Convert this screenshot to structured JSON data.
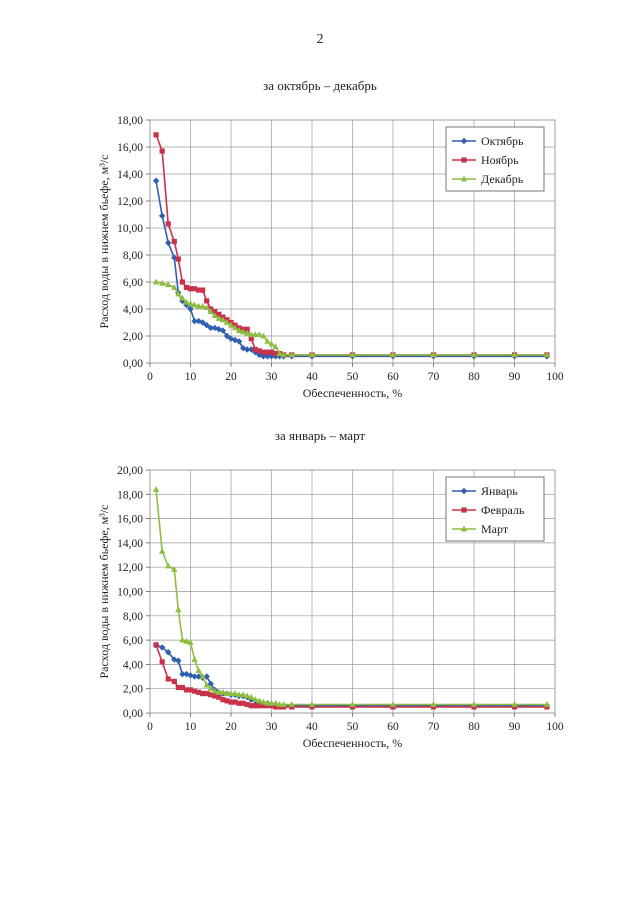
{
  "page": {
    "number": "2"
  },
  "chart_data": [
    {
      "type": "line",
      "title": "за октябрь – декабрь",
      "xlabel": "Обеспеченность, %",
      "ylabel": "Расход воды в нижнем бьефе, м³/с",
      "xlim": [
        0,
        100
      ],
      "ylim": [
        0,
        18
      ],
      "xticks": [
        "0",
        "10",
        "20",
        "30",
        "40",
        "50",
        "60",
        "70",
        "80",
        "90",
        "100"
      ],
      "yticks": [
        "0,00",
        "2,00",
        "4,00",
        "6,00",
        "8,00",
        "10,00",
        "12,00",
        "14,00",
        "16,00",
        "18,00"
      ],
      "grid": true,
      "legend_position": "top-right",
      "series": [
        {
          "name": "Октябрь",
          "color": "#2e5fb0",
          "marker": "diamond",
          "points": [
            [
              1.5,
              13.5
            ],
            [
              3,
              10.9
            ],
            [
              4.5,
              8.9
            ],
            [
              6,
              7.8
            ],
            [
              7,
              5.2
            ],
            [
              8,
              4.6
            ],
            [
              9,
              4.3
            ],
            [
              10,
              4.0
            ],
            [
              11,
              3.1
            ],
            [
              12,
              3.1
            ],
            [
              13,
              3.0
            ],
            [
              14,
              2.8
            ],
            [
              15,
              2.6
            ],
            [
              16,
              2.6
            ],
            [
              17,
              2.5
            ],
            [
              18,
              2.4
            ],
            [
              19,
              2.0
            ],
            [
              20,
              1.8
            ],
            [
              21,
              1.7
            ],
            [
              22,
              1.6
            ],
            [
              23,
              1.1
            ],
            [
              24,
              1.0
            ],
            [
              25,
              1.0
            ],
            [
              26,
              0.8
            ],
            [
              27,
              0.6
            ],
            [
              28,
              0.5
            ],
            [
              29,
              0.5
            ],
            [
              30,
              0.5
            ],
            [
              31,
              0.5
            ],
            [
              32,
              0.5
            ],
            [
              33,
              0.5
            ],
            [
              35,
              0.5
            ],
            [
              40,
              0.5
            ],
            [
              50,
              0.5
            ],
            [
              60,
              0.5
            ],
            [
              70,
              0.5
            ],
            [
              80,
              0.5
            ],
            [
              90,
              0.5
            ],
            [
              98,
              0.5
            ]
          ]
        },
        {
          "name": "Ноябрь",
          "color": "#c8324b",
          "marker": "square",
          "points": [
            [
              1.5,
              16.9
            ],
            [
              3,
              15.7
            ],
            [
              4.5,
              10.3
            ],
            [
              6,
              9.0
            ],
            [
              7,
              7.7
            ],
            [
              8,
              6.0
            ],
            [
              9,
              5.6
            ],
            [
              10,
              5.5
            ],
            [
              11,
              5.5
            ],
            [
              12,
              5.4
            ],
            [
              13,
              5.4
            ],
            [
              14,
              4.6
            ],
            [
              15,
              4.0
            ],
            [
              16,
              3.8
            ],
            [
              17,
              3.6
            ],
            [
              18,
              3.4
            ],
            [
              19,
              3.2
            ],
            [
              20,
              3.0
            ],
            [
              21,
              2.8
            ],
            [
              22,
              2.6
            ],
            [
              23,
              2.5
            ],
            [
              24,
              2.5
            ],
            [
              25,
              1.8
            ],
            [
              26,
              1.0
            ],
            [
              27,
              0.9
            ],
            [
              28,
              0.8
            ],
            [
              29,
              0.8
            ],
            [
              30,
              0.8
            ],
            [
              31,
              0.7
            ],
            [
              32,
              0.7
            ],
            [
              33,
              0.6
            ],
            [
              35,
              0.6
            ],
            [
              40,
              0.6
            ],
            [
              50,
              0.6
            ],
            [
              60,
              0.6
            ],
            [
              70,
              0.6
            ],
            [
              80,
              0.6
            ],
            [
              90,
              0.6
            ],
            [
              98,
              0.6
            ]
          ]
        },
        {
          "name": "Декабрь",
          "color": "#8ebd42",
          "marker": "triangle",
          "points": [
            [
              1.5,
              6.0
            ],
            [
              3,
              5.9
            ],
            [
              4.5,
              5.8
            ],
            [
              6,
              5.6
            ],
            [
              7,
              5.1
            ],
            [
              8,
              4.8
            ],
            [
              9,
              4.5
            ],
            [
              10,
              4.4
            ],
            [
              11,
              4.3
            ],
            [
              12,
              4.2
            ],
            [
              13,
              4.2
            ],
            [
              14,
              4.1
            ],
            [
              15,
              3.8
            ],
            [
              16,
              3.5
            ],
            [
              17,
              3.3
            ],
            [
              18,
              3.2
            ],
            [
              19,
              3.0
            ],
            [
              20,
              2.8
            ],
            [
              21,
              2.6
            ],
            [
              22,
              2.4
            ],
            [
              23,
              2.3
            ],
            [
              24,
              2.2
            ],
            [
              25,
              2.1
            ],
            [
              26,
              2.1
            ],
            [
              27,
              2.1
            ],
            [
              28,
              2.0
            ],
            [
              29,
              1.6
            ],
            [
              30,
              1.4
            ],
            [
              31,
              1.2
            ],
            [
              32,
              0.7
            ],
            [
              33,
              0.6
            ],
            [
              35,
              0.6
            ],
            [
              40,
              0.6
            ],
            [
              50,
              0.6
            ],
            [
              60,
              0.6
            ],
            [
              70,
              0.6
            ],
            [
              80,
              0.6
            ],
            [
              90,
              0.6
            ],
            [
              98,
              0.6
            ]
          ]
        }
      ]
    },
    {
      "type": "line",
      "title": "за январь – март",
      "xlabel": "Обеспеченность, %",
      "ylabel": "Расход воды в нижнем бьефе, м³/с",
      "xlim": [
        0,
        100
      ],
      "ylim": [
        0,
        20
      ],
      "xticks": [
        "0",
        "10",
        "20",
        "30",
        "40",
        "50",
        "60",
        "70",
        "80",
        "90",
        "100"
      ],
      "yticks": [
        "0,00",
        "2,00",
        "4,00",
        "6,00",
        "8,00",
        "10,00",
        "12,00",
        "14,00",
        "16,00",
        "18,00",
        "20,00"
      ],
      "grid": true,
      "legend_position": "top-right",
      "series": [
        {
          "name": "Январь",
          "color": "#2e5fb0",
          "marker": "diamond",
          "points": [
            [
              1.5,
              5.6
            ],
            [
              3,
              5.4
            ],
            [
              4.5,
              5.0
            ],
            [
              6,
              4.4
            ],
            [
              7,
              4.3
            ],
            [
              8,
              3.2
            ],
            [
              9,
              3.2
            ],
            [
              10,
              3.1
            ],
            [
              11,
              3.0
            ],
            [
              12,
              3.0
            ],
            [
              13,
              2.9
            ],
            [
              14,
              3.0
            ],
            [
              15,
              2.4
            ],
            [
              16,
              1.9
            ],
            [
              17,
              1.7
            ],
            [
              18,
              1.6
            ],
            [
              19,
              1.6
            ],
            [
              20,
              1.5
            ],
            [
              21,
              1.5
            ],
            [
              22,
              1.4
            ],
            [
              23,
              1.4
            ],
            [
              24,
              1.3
            ],
            [
              25,
              1.1
            ],
            [
              26,
              1.0
            ],
            [
              27,
              0.9
            ],
            [
              28,
              0.8
            ],
            [
              29,
              0.8
            ],
            [
              30,
              0.7
            ],
            [
              31,
              0.7
            ],
            [
              32,
              0.6
            ],
            [
              33,
              0.6
            ],
            [
              35,
              0.6
            ],
            [
              40,
              0.6
            ],
            [
              50,
              0.6
            ],
            [
              60,
              0.6
            ],
            [
              70,
              0.6
            ],
            [
              80,
              0.6
            ],
            [
              90,
              0.6
            ],
            [
              98,
              0.6
            ]
          ]
        },
        {
          "name": "Февраль",
          "color": "#c8324b",
          "marker": "square",
          "points": [
            [
              1.5,
              5.6
            ],
            [
              3,
              4.2
            ],
            [
              4.5,
              2.8
            ],
            [
              6,
              2.6
            ],
            [
              7,
              2.1
            ],
            [
              8,
              2.1
            ],
            [
              9,
              1.9
            ],
            [
              10,
              1.9
            ],
            [
              11,
              1.8
            ],
            [
              12,
              1.7
            ],
            [
              13,
              1.6
            ],
            [
              14,
              1.6
            ],
            [
              15,
              1.5
            ],
            [
              16,
              1.4
            ],
            [
              17,
              1.3
            ],
            [
              18,
              1.1
            ],
            [
              19,
              1.0
            ],
            [
              20,
              0.9
            ],
            [
              21,
              0.9
            ],
            [
              22,
              0.8
            ],
            [
              23,
              0.8
            ],
            [
              24,
              0.7
            ],
            [
              25,
              0.6
            ],
            [
              26,
              0.6
            ],
            [
              27,
              0.6
            ],
            [
              28,
              0.6
            ],
            [
              29,
              0.6
            ],
            [
              30,
              0.6
            ],
            [
              31,
              0.5
            ],
            [
              32,
              0.5
            ],
            [
              33,
              0.5
            ],
            [
              35,
              0.5
            ],
            [
              40,
              0.5
            ],
            [
              50,
              0.5
            ],
            [
              60,
              0.5
            ],
            [
              70,
              0.5
            ],
            [
              80,
              0.5
            ],
            [
              90,
              0.5
            ],
            [
              98,
              0.5
            ]
          ]
        },
        {
          "name": "Март",
          "color": "#8ebd42",
          "marker": "triangle",
          "points": [
            [
              1.5,
              18.4
            ],
            [
              3,
              13.3
            ],
            [
              4.5,
              12.1
            ],
            [
              6,
              11.8
            ],
            [
              7,
              8.5
            ],
            [
              8,
              6.0
            ],
            [
              9,
              5.9
            ],
            [
              10,
              5.8
            ],
            [
              11,
              4.4
            ],
            [
              12,
              3.5
            ],
            [
              13,
              3.0
            ],
            [
              14,
              2.3
            ],
            [
              15,
              2.0
            ],
            [
              16,
              1.8
            ],
            [
              17,
              1.7
            ],
            [
              18,
              1.7
            ],
            [
              19,
              1.6
            ],
            [
              20,
              1.6
            ],
            [
              21,
              1.6
            ],
            [
              22,
              1.5
            ],
            [
              23,
              1.5
            ],
            [
              24,
              1.4
            ],
            [
              25,
              1.3
            ],
            [
              26,
              1.1
            ],
            [
              27,
              1.0
            ],
            [
              28,
              0.9
            ],
            [
              29,
              0.8
            ],
            [
              30,
              0.8
            ],
            [
              31,
              0.8
            ],
            [
              32,
              0.7
            ],
            [
              33,
              0.7
            ],
            [
              35,
              0.7
            ],
            [
              40,
              0.7
            ],
            [
              50,
              0.7
            ],
            [
              60,
              0.7
            ],
            [
              70,
              0.7
            ],
            [
              80,
              0.7
            ],
            [
              90,
              0.7
            ],
            [
              98,
              0.7
            ]
          ]
        }
      ]
    }
  ]
}
